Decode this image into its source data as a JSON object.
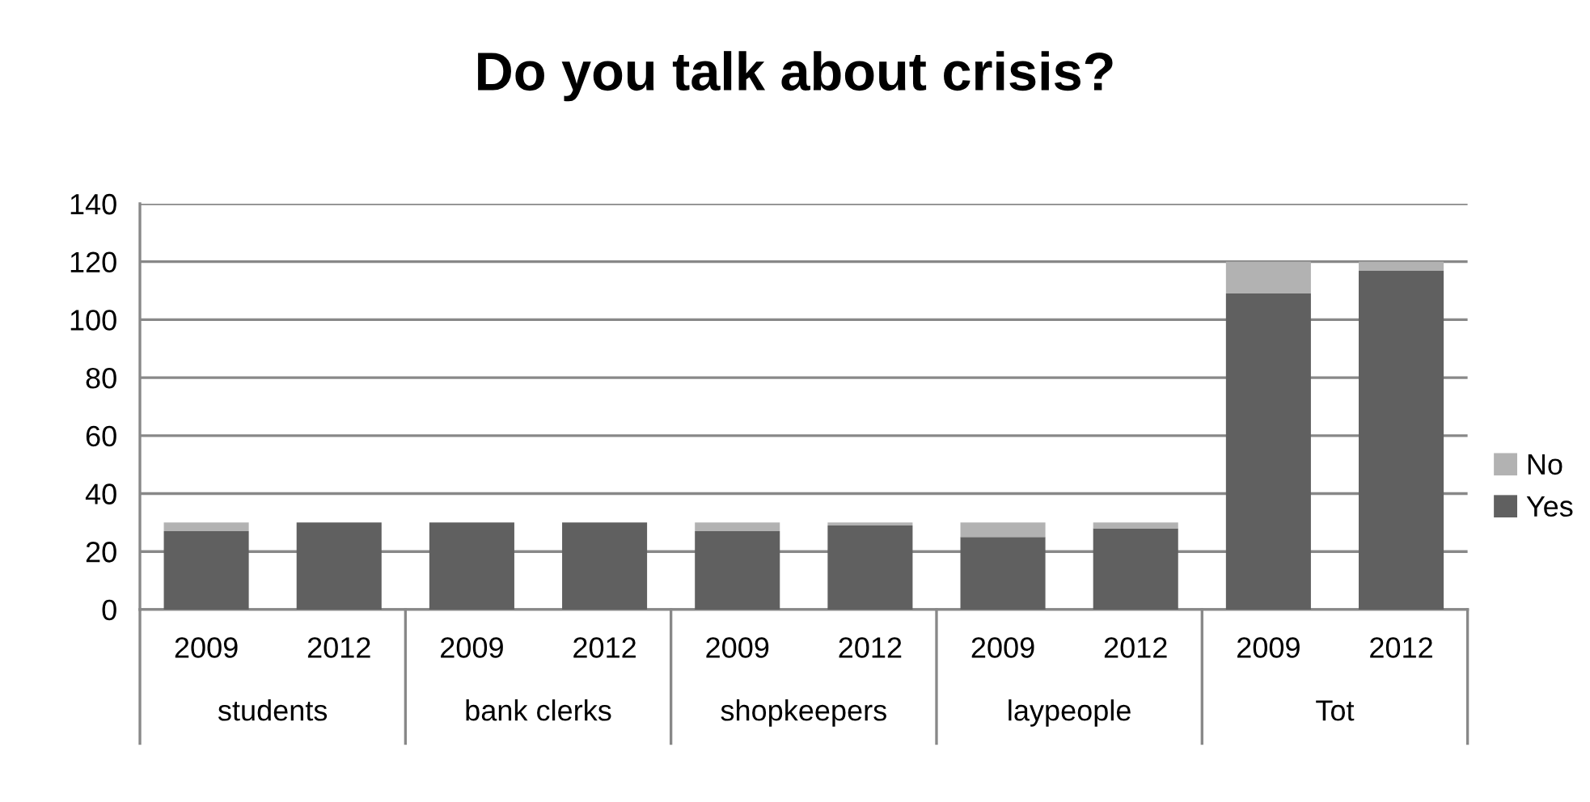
{
  "chart_data": {
    "type": "bar",
    "title": "Do you talk about crisis?",
    "stacked": true,
    "categories": [
      "2009",
      "2012",
      "2009",
      "2012",
      "2009",
      "2012",
      "2009",
      "2012",
      "2009",
      "2012"
    ],
    "annotations": [
      "students",
      "bank clerks",
      "shopkeepers",
      "laypeople",
      "Tot"
    ],
    "series": [
      {
        "name": "Yes",
        "color": "#606060",
        "values": [
          27,
          30,
          30,
          30,
          27,
          29,
          25,
          28,
          109,
          117
        ]
      },
      {
        "name": "No",
        "color": "#b2b2b2",
        "values": [
          3,
          0,
          0,
          0,
          3,
          1,
          5,
          2,
          11,
          3
        ]
      }
    ],
    "ylim": [
      0,
      140
    ],
    "yticks": [
      0,
      20,
      40,
      60,
      80,
      100,
      120,
      140
    ],
    "grid": "y",
    "legend": "right"
  }
}
